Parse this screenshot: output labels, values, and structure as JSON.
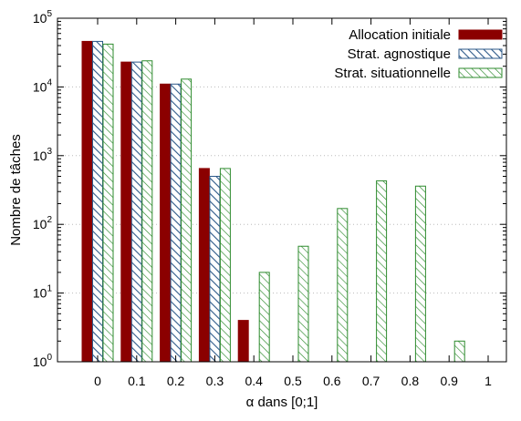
{
  "chart_data": {
    "type": "bar",
    "title": "",
    "xlabel": "α dans [0;1]",
    "ylabel": "Nombre de tâches",
    "y_scale": "log",
    "ylim": [
      1,
      100000
    ],
    "yticks": [
      {
        "base": "10",
        "exp": "0",
        "value": 1
      },
      {
        "base": "10",
        "exp": "1",
        "value": 10
      },
      {
        "base": "10",
        "exp": "2",
        "value": 100
      },
      {
        "base": "10",
        "exp": "3",
        "value": 1000
      },
      {
        "base": "10",
        "exp": "4",
        "value": 10000
      },
      {
        "base": "10",
        "exp": "5",
        "value": 100000
      }
    ],
    "grid": "horizontal-dotted",
    "legend_position": "top-right",
    "categories": [
      "0",
      "0.1",
      "0.2",
      "0.3",
      "0.4",
      "0.5",
      "0.6",
      "0.7",
      "0.8",
      "0.9",
      "1"
    ],
    "series": [
      {
        "name": "Allocation initiale",
        "color": "#8b0000",
        "pattern": "solid",
        "values": [
          46000,
          23000,
          11000,
          650,
          4,
          null,
          null,
          null,
          null,
          null,
          null
        ]
      },
      {
        "name": "Strat. agnostique",
        "color": "#2e5a8a",
        "pattern": "diagonal-hatch",
        "values": [
          46000,
          23000,
          11000,
          500,
          null,
          null,
          null,
          null,
          null,
          null,
          null
        ]
      },
      {
        "name": "Strat. situationnelle",
        "color": "#2e8b2e",
        "pattern": "diagonal-hatch",
        "values": [
          42000,
          24000,
          13000,
          650,
          20,
          48,
          170,
          430,
          360,
          2,
          null
        ]
      }
    ]
  }
}
